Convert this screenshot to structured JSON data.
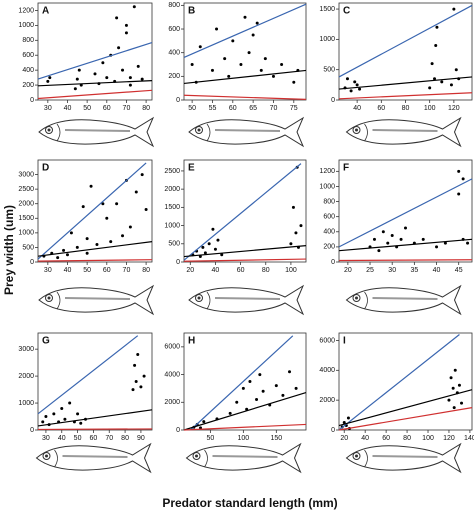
{
  "chart_data": [
    {
      "type": "scatter",
      "label": "A",
      "xlim": [
        25,
        83
      ],
      "ylim": [
        0,
        1300
      ],
      "xticks": [
        30,
        40,
        50,
        60,
        70,
        80
      ],
      "yticks": [
        0,
        200,
        400,
        600,
        800,
        1000,
        1200
      ],
      "points": {
        "x": [
          30,
          31,
          44,
          45,
          46,
          47,
          54,
          56,
          58,
          60,
          62,
          64,
          66,
          68,
          70,
          72,
          74,
          76,
          78,
          65,
          70,
          72
        ],
        "y": [
          250,
          300,
          150,
          280,
          400,
          200,
          350,
          220,
          500,
          300,
          600,
          250,
          700,
          400,
          900,
          300,
          1250,
          450,
          280,
          1100,
          1000,
          200
        ]
      },
      "lines": [
        {
          "color": "#3a66b0",
          "x": [
            25,
            83
          ],
          "y": [
            280,
            770
          ]
        },
        {
          "color": "#000000",
          "x": [
            25,
            83
          ],
          "y": [
            190,
            260
          ]
        },
        {
          "color": "#d03030",
          "x": [
            25,
            83
          ],
          "y": [
            20,
            130
          ]
        }
      ]
    },
    {
      "type": "scatter",
      "label": "B",
      "xlim": [
        48,
        78
      ],
      "ylim": [
        0,
        820
      ],
      "xticks": [
        50,
        55,
        60,
        65,
        70,
        75
      ],
      "yticks": [
        0,
        200,
        400,
        600,
        800
      ],
      "points": {
        "x": [
          50,
          51,
          52,
          55,
          56,
          58,
          59,
          60,
          62,
          63,
          64,
          65,
          66,
          67,
          68,
          70,
          72,
          75,
          76
        ],
        "y": [
          300,
          150,
          450,
          250,
          600,
          350,
          200,
          500,
          300,
          700,
          400,
          550,
          650,
          250,
          350,
          200,
          300,
          150,
          250
        ]
      },
      "lines": [
        {
          "color": "#3a66b0",
          "x": [
            48,
            78
          ],
          "y": [
            360,
            810
          ]
        },
        {
          "color": "#000000",
          "x": [
            48,
            78
          ],
          "y": [
            140,
            250
          ]
        },
        {
          "color": "#d03030",
          "x": [
            48,
            78
          ],
          "y": [
            40,
            5
          ]
        }
      ]
    },
    {
      "type": "scatter",
      "label": "C",
      "xlim": [
        25,
        135
      ],
      "ylim": [
        0,
        1600
      ],
      "xticks": [
        40,
        60,
        80,
        100,
        120
      ],
      "yticks": [
        0,
        500,
        1000,
        1500
      ],
      "points": {
        "x": [
          30,
          32,
          35,
          38,
          40,
          42,
          100,
          102,
          104,
          105,
          106,
          110,
          118,
          120,
          122,
          124
        ],
        "y": [
          200,
          350,
          150,
          300,
          250,
          180,
          200,
          600,
          350,
          900,
          1200,
          300,
          250,
          1500,
          500,
          350
        ]
      },
      "lines": [
        {
          "color": "#3a66b0",
          "x": [
            25,
            135
          ],
          "y": [
            380,
            1560
          ]
        },
        {
          "color": "#000000",
          "x": [
            25,
            135
          ],
          "y": [
            180,
            380
          ]
        },
        {
          "color": "#d03030",
          "x": [
            25,
            135
          ],
          "y": [
            20,
            120
          ]
        }
      ]
    },
    {
      "type": "scatter",
      "label": "D",
      "xlim": [
        25,
        83
      ],
      "ylim": [
        0,
        3500
      ],
      "xticks": [
        30,
        40,
        50,
        60,
        70,
        80
      ],
      "yticks": [
        0,
        500,
        1000,
        1500,
        2000,
        2500,
        3000
      ],
      "points": {
        "x": [
          28,
          32,
          35,
          38,
          40,
          42,
          45,
          48,
          50,
          52,
          55,
          60,
          62,
          65,
          68,
          70,
          72,
          75,
          78,
          80,
          50,
          58
        ],
        "y": [
          200,
          300,
          150,
          400,
          250,
          1000,
          500,
          1900,
          800,
          2600,
          600,
          1500,
          700,
          2000,
          900,
          2800,
          1200,
          2400,
          3000,
          1800,
          300,
          2000
        ]
      },
      "lines": [
        {
          "color": "#3a66b0",
          "x": [
            25,
            80
          ],
          "y": [
            100,
            3400
          ]
        },
        {
          "color": "#000000",
          "x": [
            25,
            83
          ],
          "y": [
            200,
            700
          ]
        },
        {
          "color": "#d03030",
          "x": [
            25,
            83
          ],
          "y": [
            30,
            80
          ]
        }
      ]
    },
    {
      "type": "scatter",
      "label": "E",
      "xlim": [
        15,
        112
      ],
      "ylim": [
        0,
        2800
      ],
      "xticks": [
        20,
        40,
        60,
        80,
        100
      ],
      "yticks": [
        0,
        500,
        1000,
        1500,
        2000,
        2500
      ],
      "points": {
        "x": [
          22,
          25,
          28,
          30,
          32,
          35,
          38,
          40,
          42,
          45,
          100,
          102,
          104,
          105,
          106,
          108
        ],
        "y": [
          200,
          300,
          150,
          400,
          250,
          500,
          900,
          350,
          600,
          200,
          500,
          1500,
          800,
          2600,
          400,
          1000
        ]
      },
      "lines": [
        {
          "color": "#3a66b0",
          "x": [
            15,
            108
          ],
          "y": [
            50,
            2700
          ]
        },
        {
          "color": "#000000",
          "x": [
            15,
            112
          ],
          "y": [
            150,
            450
          ]
        },
        {
          "color": "#d03030",
          "x": [
            15,
            112
          ],
          "y": [
            20,
            80
          ]
        }
      ]
    },
    {
      "type": "scatter",
      "label": "F",
      "xlim": [
        18,
        48
      ],
      "ylim": [
        0,
        1350
      ],
      "xticks": [
        20,
        25,
        30,
        35,
        40,
        45
      ],
      "yticks": [
        0,
        200,
        400,
        600,
        800,
        1000,
        1200
      ],
      "points": {
        "x": [
          25,
          26,
          27,
          28,
          29,
          30,
          31,
          32,
          33,
          35,
          37,
          40,
          42,
          45,
          45,
          46,
          46,
          47
        ],
        "y": [
          200,
          300,
          150,
          400,
          250,
          350,
          200,
          300,
          450,
          250,
          300,
          200,
          250,
          1200,
          900,
          300,
          1100,
          250
        ]
      },
      "lines": [
        {
          "color": "#3a66b0",
          "x": [
            18,
            48
          ],
          "y": [
            200,
            1100
          ]
        },
        {
          "color": "#000000",
          "x": [
            18,
            48
          ],
          "y": [
            150,
            300
          ]
        },
        {
          "color": "#d03030",
          "x": [
            18,
            48
          ],
          "y": [
            20,
            30
          ]
        }
      ]
    },
    {
      "type": "scatter",
      "label": "G",
      "xlim": [
        25,
        97
      ],
      "ylim": [
        0,
        3600
      ],
      "xticks": [
        30,
        40,
        50,
        60,
        70,
        80,
        90
      ],
      "yticks": [
        0,
        1000,
        2000,
        3000
      ],
      "points": {
        "x": [
          28,
          30,
          32,
          35,
          38,
          40,
          42,
          45,
          48,
          50,
          52,
          55,
          85,
          86,
          87,
          88,
          90,
          92
        ],
        "y": [
          300,
          500,
          200,
          600,
          300,
          800,
          400,
          1000,
          300,
          600,
          250,
          400,
          1500,
          2400,
          1800,
          2800,
          1600,
          2000
        ]
      },
      "lines": [
        {
          "color": "#3a66b0",
          "x": [
            25,
            88
          ],
          "y": [
            600,
            3500
          ]
        },
        {
          "color": "#000000",
          "x": [
            25,
            97
          ],
          "y": [
            150,
            750
          ]
        },
        {
          "color": "#d03030",
          "x": [
            25,
            97
          ],
          "y": [
            20,
            40
          ]
        }
      ]
    },
    {
      "type": "scatter",
      "label": "H",
      "xlim": [
        10,
        195
      ],
      "ylim": [
        0,
        7000
      ],
      "xticks": [
        50,
        100,
        150
      ],
      "yticks": [
        0,
        2000,
        4000,
        6000
      ],
      "points": {
        "x": [
          25,
          30,
          35,
          40,
          60,
          80,
          90,
          100,
          105,
          110,
          120,
          125,
          130,
          140,
          150,
          160,
          170,
          180
        ],
        "y": [
          200,
          400,
          150,
          600,
          800,
          1200,
          2000,
          3000,
          1500,
          3500,
          2200,
          4000,
          2800,
          1800,
          3200,
          2500,
          4200,
          3000
        ]
      },
      "lines": [
        {
          "color": "#3a66b0",
          "x": [
            20,
            175
          ],
          "y": [
            0,
            6800
          ]
        },
        {
          "color": "#000000",
          "x": [
            10,
            195
          ],
          "y": [
            0,
            2700
          ]
        },
        {
          "color": "#d03030",
          "x": [
            10,
            195
          ],
          "y": [
            0,
            400
          ]
        }
      ]
    },
    {
      "type": "scatter",
      "label": "I",
      "xlim": [
        15,
        142
      ],
      "ylim": [
        0,
        6500
      ],
      "xticks": [
        20,
        40,
        60,
        80,
        100,
        120,
        140
      ],
      "yticks": [
        0,
        2000,
        4000,
        6000
      ],
      "points": {
        "x": [
          18,
          20,
          22,
          24,
          25,
          120,
          122,
          124,
          125,
          126,
          128,
          130,
          132
        ],
        "y": [
          200,
          500,
          300,
          800,
          100,
          2000,
          3500,
          2800,
          1500,
          4000,
          2500,
          3000,
          1800
        ]
      },
      "lines": [
        {
          "color": "#3a66b0",
          "x": [
            15,
            130
          ],
          "y": [
            0,
            6400
          ]
        },
        {
          "color": "#000000",
          "x": [
            15,
            142
          ],
          "y": [
            300,
            2700
          ]
        },
        {
          "color": "#d03030",
          "x": [
            15,
            142
          ],
          "y": [
            0,
            1500
          ]
        }
      ]
    }
  ],
  "ylabel": "Prey width (um)",
  "xlabel": "Predator standard length (mm)"
}
